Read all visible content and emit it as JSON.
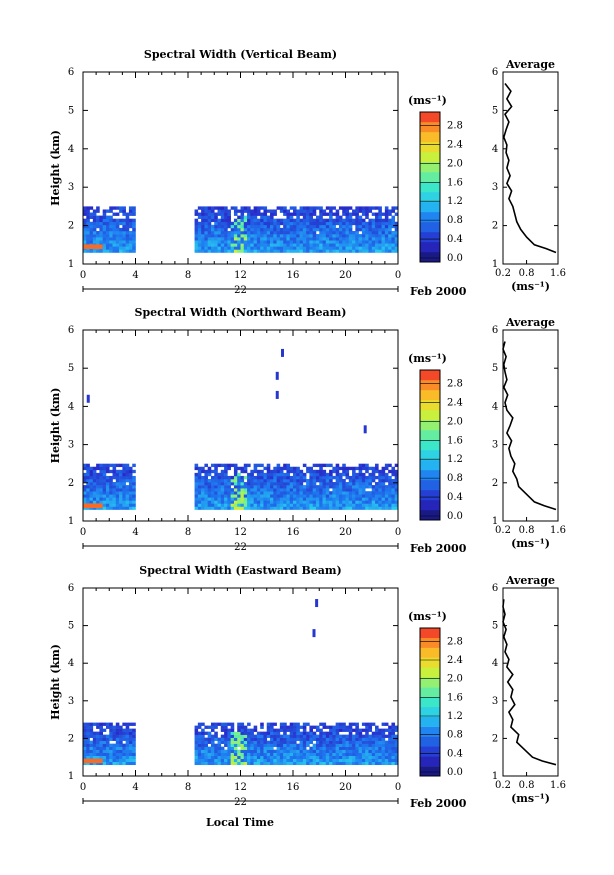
{
  "figure": {
    "date_day": "22",
    "date_label": "Feb 2000",
    "xlabel": "Local Time",
    "unit_label": "(ms⁻¹)"
  },
  "chart_data": [
    {
      "type": "heatmap",
      "title": "Spectral Width (Vertical Beam)",
      "xlabel": "Local Time",
      "ylabel": "Height (km)",
      "xlim": [
        0,
        24
      ],
      "ylim": [
        1,
        6
      ],
      "xticks": [
        "0",
        "4",
        "8",
        "12",
        "16",
        "20",
        "0"
      ],
      "yticks": [
        "1",
        "2",
        "3",
        "4",
        "5",
        "6"
      ],
      "colorbar": {
        "label": "(ms⁻¹)",
        "ticks": [
          "0.0",
          "0.4",
          "0.8",
          "1.2",
          "1.6",
          "2.0",
          "2.4",
          "2.8"
        ],
        "range": [
          0,
          3.0
        ]
      },
      "data_gaps_hours": [
        [
          4.0,
          8.5
        ]
      ],
      "echo_region": {
        "height_km": [
          1.3,
          2.5
        ],
        "time_h": [
          [
            0,
            4.0
          ],
          [
            8.5,
            24.0
          ]
        ]
      },
      "high_width_patch": {
        "time_h": [
          0,
          1.5
        ],
        "height_km": 1.45,
        "value_ms": 2.8
      },
      "average_profile": {
        "title": "Average",
        "xlabel": "(ms⁻¹)",
        "xlim": [
          0.2,
          1.6
        ],
        "xticks": [
          "0.2",
          "0.8",
          "1.6"
        ],
        "height_km": [
          1.3,
          1.4,
          1.5,
          1.7,
          1.9,
          2.1,
          2.3,
          2.5,
          2.7,
          2.9,
          3.1,
          3.3,
          3.5,
          3.7,
          3.9,
          4.1,
          4.3,
          4.5,
          4.7,
          4.9,
          5.1,
          5.3,
          5.5,
          5.7
        ],
        "width_ms": [
          1.55,
          1.3,
          1.0,
          0.8,
          0.65,
          0.55,
          0.5,
          0.45,
          0.35,
          0.42,
          0.3,
          0.38,
          0.3,
          0.35,
          0.28,
          0.3,
          0.22,
          0.28,
          0.35,
          0.25,
          0.42,
          0.3,
          0.4,
          0.25
        ]
      }
    },
    {
      "type": "heatmap",
      "title": "Spectral Width (Northward Beam)",
      "xlabel": "Local Time",
      "ylabel": "Height (km)",
      "xlim": [
        0,
        24
      ],
      "ylim": [
        1,
        6
      ],
      "xticks": [
        "0",
        "4",
        "8",
        "12",
        "16",
        "20",
        "0"
      ],
      "yticks": [
        "1",
        "2",
        "3",
        "4",
        "5",
        "6"
      ],
      "colorbar": {
        "label": "(ms⁻¹)",
        "ticks": [
          "0.0",
          "0.4",
          "0.8",
          "1.2",
          "1.6",
          "2.0",
          "2.4",
          "2.8"
        ],
        "range": [
          0,
          3.0
        ]
      },
      "data_gaps_hours": [
        [
          4.0,
          8.5
        ]
      ],
      "echo_region": {
        "height_km": [
          1.3,
          2.5
        ],
        "time_h": [
          [
            0,
            4.0
          ],
          [
            8.5,
            24.0
          ]
        ]
      },
      "high_width_patch": {
        "time_h": [
          0,
          1.5
        ],
        "height_km": 1.4,
        "value_ms": 2.8
      },
      "isolated_echoes": [
        {
          "time_h": 0.4,
          "height_km": 4.2
        },
        {
          "time_h": 15.2,
          "height_km": 5.4
        },
        {
          "time_h": 14.8,
          "height_km": 4.8
        },
        {
          "time_h": 14.8,
          "height_km": 4.3
        },
        {
          "time_h": 21.5,
          "height_km": 3.4
        }
      ],
      "average_profile": {
        "title": "Average",
        "xlabel": "(ms⁻¹)",
        "xlim": [
          0.2,
          1.6
        ],
        "xticks": [
          "0.2",
          "0.8",
          "1.6"
        ],
        "height_km": [
          1.3,
          1.4,
          1.5,
          1.7,
          1.9,
          2.1,
          2.3,
          2.5,
          2.7,
          2.9,
          3.1,
          3.3,
          3.5,
          3.7,
          3.9,
          4.1,
          4.3,
          4.5,
          4.7,
          4.9,
          5.1,
          5.3,
          5.5,
          5.7
        ],
        "width_ms": [
          1.55,
          1.25,
          1.0,
          0.8,
          0.6,
          0.55,
          0.45,
          0.5,
          0.4,
          0.35,
          0.42,
          0.3,
          0.38,
          0.45,
          0.3,
          0.25,
          0.32,
          0.22,
          0.3,
          0.25,
          0.22,
          0.28,
          0.2,
          0.25
        ]
      }
    },
    {
      "type": "heatmap",
      "title": "Spectral Width (Eastward Beam)",
      "xlabel": "Local Time",
      "ylabel": "Height (km)",
      "xlim": [
        0,
        24
      ],
      "ylim": [
        1,
        6
      ],
      "xticks": [
        "0",
        "4",
        "8",
        "12",
        "16",
        "20",
        "0"
      ],
      "yticks": [
        "1",
        "2",
        "3",
        "4",
        "5",
        "6"
      ],
      "colorbar": {
        "label": "(ms⁻¹)",
        "ticks": [
          "0.0",
          "0.4",
          "0.8",
          "1.2",
          "1.6",
          "2.0",
          "2.4",
          "2.8"
        ],
        "range": [
          0,
          3.0
        ]
      },
      "data_gaps_hours": [
        [
          4.0,
          8.5
        ]
      ],
      "echo_region": {
        "height_km": [
          1.3,
          2.4
        ],
        "time_h": [
          [
            0,
            4.0
          ],
          [
            8.5,
            24.0
          ]
        ]
      },
      "high_width_patch": {
        "time_h": [
          0,
          1.5
        ],
        "height_km": 1.4,
        "value_ms": 2.8
      },
      "isolated_echoes": [
        {
          "time_h": 17.6,
          "height_km": 4.8
        },
        {
          "time_h": 17.8,
          "height_km": 5.6
        }
      ],
      "average_profile": {
        "title": "Average",
        "xlabel": "(ms⁻¹)",
        "xlim": [
          0.2,
          1.6
        ],
        "xticks": [
          "0.2",
          "0.8",
          "1.6"
        ],
        "height_km": [
          1.3,
          1.4,
          1.5,
          1.7,
          1.9,
          2.1,
          2.3,
          2.5,
          2.7,
          2.9,
          3.1,
          3.3,
          3.5,
          3.7,
          3.9,
          4.1,
          4.3,
          4.5,
          4.7,
          4.9,
          5.1,
          5.3,
          5.5,
          5.7
        ],
        "width_ms": [
          1.55,
          1.2,
          0.95,
          0.75,
          0.55,
          0.6,
          0.4,
          0.45,
          0.35,
          0.5,
          0.4,
          0.45,
          0.32,
          0.45,
          0.3,
          0.35,
          0.25,
          0.3,
          0.22,
          0.28,
          0.2,
          0.25,
          0.2,
          0.22
        ]
      }
    }
  ]
}
